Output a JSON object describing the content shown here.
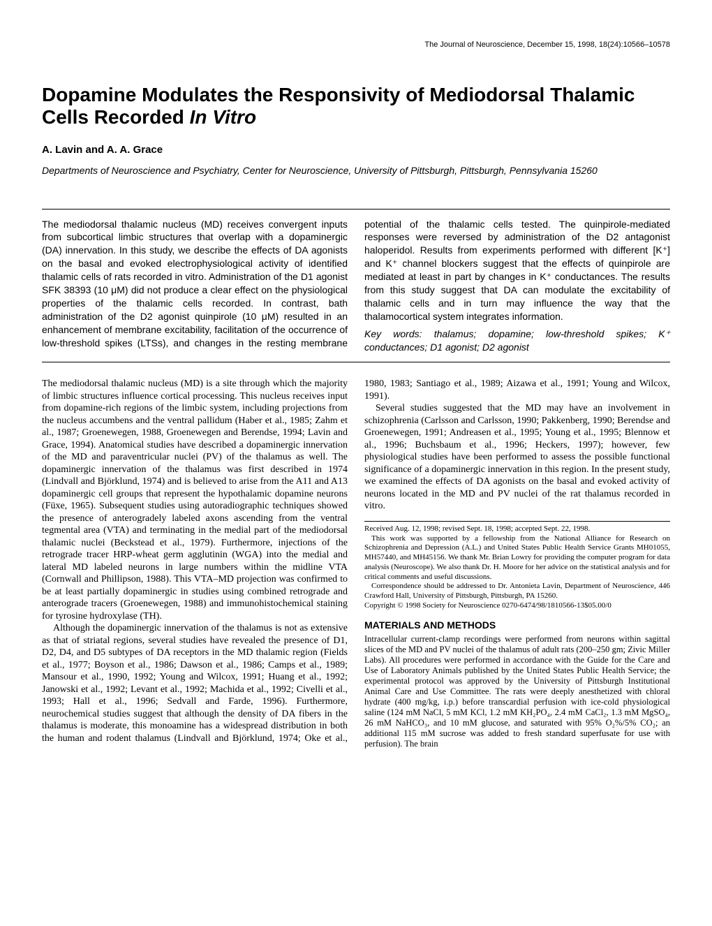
{
  "journal_header": "The Journal of Neuroscience, December 15, 1998, 18(24):10566–10578",
  "title_a": "Dopamine Modulates the Responsivity of Mediodorsal Thalamic Cells Recorded ",
  "title_b": "In Vitro",
  "authors": "A. Lavin and A. A. Grace",
  "affiliation": "Departments of Neuroscience and Psychiatry, Center for Neuroscience, University of Pittsburgh, Pittsburgh, Pennsylvania 15260",
  "abstract_p1": "The mediodorsal thalamic nucleus (MD) receives convergent inputs from subcortical limbic structures that overlap with a dopaminergic (DA) innervation. In this study, we describe the effects of DA agonists on the basal and evoked electrophysiological activity of identified thalamic cells of rats recorded in vitro. Administration of the D1 agonist SFK 38393 (10 μM) did not produce a clear effect on the physiological properties of the thalamic cells recorded. In contrast, bath administration of the D2 agonist quinpirole (10 μM) resulted in an enhancement of membrane excitability, facilitation of the occurrence of low-threshold spikes (LTSs), and changes in the resting membrane potential of the thalamic cells tested. The quinpirole-mediated responses were reversed by administration of the D2 antagonist haloperidol. Results from experiments performed with different [K⁺] and K⁺ channel blockers suggest that the effects of quinpirole are mediated at least in part by changes in K⁺ conductances. The results from this study suggest that DA can modulate the excitability of thalamic cells and in turn may influence the way that the thalamocortical system integrates information.",
  "keywords": "Key words: thalamus; dopamine; low-threshold spikes; K⁺ conductances; D1 agonist; D2 agonist",
  "body_p1": "The mediodorsal thalamic nucleus (MD) is a site through which the majority of limbic structures influence cortical processing. This nucleus receives input from dopamine-rich regions of the limbic system, including projections from the nucleus accumbens and the ventral pallidum (Haber et al., 1985; Zahm et al., 1987; Groenewegen, 1988, Groenewegen and Berendse, 1994; Lavin and Grace, 1994). Anatomical studies have described a dopaminergic innervation of the MD and paraventricular nuclei (PV) of the thalamus as well. The dopaminergic innervation of the thalamus was first described in 1974 (Lindvall and Björklund, 1974) and is believed to arise from the A11 and A13 dopaminergic cell groups that represent the hypothalamic dopamine neurons (Füxe, 1965). Subsequent studies using autoradiographic techniques showed the presence of anterogradely labeled axons ascending from the ventral tegmental area (VTA) and terminating in the medial part of the mediodorsal thalamic nuclei (Beckstead et al., 1979). Furthermore, injections of the retrograde tracer HRP-wheat germ agglutinin (WGA) into the medial and lateral MD labeled neurons in large numbers within the midline VTA (Cornwall and Phillipson, 1988). This VTA–MD projection was confirmed to be at least partially dopaminergic in studies using combined retrograde and anterograde tracers (Groenewegen, 1988) and immunohistochemical staining for tyrosine hydroxylase (TH).",
  "body_p2": "Although the dopaminergic innervation of the thalamus is not as extensive as that of striatal regions, several studies have revealed the presence of D1, D2, D4, and D5 subtypes of DA receptors in the MD thalamic region (Fields et al., 1977; Boyson et al., 1986; Dawson et al., 1986; Camps et al., 1989; Mansour et al., 1990, 1992; Young and Wilcox, 1991; Huang et al., 1992; Janowski et al., 1992; Levant et al., 1992; Machida et al., 1992; Civelli et al., 1993; Hall et al., 1996; Sedvall and Farde, 1996). Furthermore, neurochemical studies suggest that although the density of DA fibers in the thalamus is moderate, this monoamine has a widespread distribution in both the human and rodent thalamus (Lindvall and Björklund, 1974; Oke et al., 1980, 1983; Santiago et al., 1989; Aizawa et al., 1991; Young and Wilcox, 1991).",
  "body_p3": "Several studies suggested that the MD may have an involvement in schizophrenia (Carlsson and Carlsson, 1990; Pakkenberg, 1990; Berendse and Groenewegen, 1991; Andreasen et al., 1995; Young et al., 1995; Blennow et al., 1996; Buchsbaum et al., 1996; Heckers, 1997); however, few physiological studies have been performed to assess the possible functional significance of a dopaminergic innervation in this region. In the present study, we examined the effects of DA agonists on the basal and evoked activity of neurons located in the MD and PV nuclei of the rat thalamus recorded in vitro.",
  "methods_head": "MATERIALS AND METHODS",
  "methods_p1": "Intracellular current-clamp recordings were performed from neurons within sagittal slices of the MD and PV nuclei of the thalamus of adult rats (200–250 gm; Zivic Miller Labs). All procedures were performed in accordance with the Guide for the Care and Use of Laboratory Animals published by the United States Public Health Service; the experimental protocol was approved by the University of Pittsburgh Institutional Animal Care and Use Committee. The rats were deeply anesthetized with chloral hydrate (400 mg/kg, i.p.) before transcardial perfusion with ice-cold physiological saline (124 mM NaCl, 5 mM KCl, 1.2 mM KH₂PO₄, 2.4 mM CaCl₂, 1.3 mM MgSO₄, 26 mM NaHCO₃, and 10 mM glucose, and saturated with 95% O₂%/5% CO₂; an additional 115 mM sucrose was added to fresh standard superfusate for use with perfusion). The brain",
  "footnote_received": "Received Aug. 12, 1998; revised Sept. 18, 1998; accepted Sept. 22, 1998.",
  "footnote_support": "This work was supported by a fellowship from the National Alliance for Research on Schizophrenia and Depression (A.L.) and United States Public Health Service Grants MH01055, MH57440, and MH45156. We thank Mr. Brian Lowry for providing the computer program for data analysis (Neuroscope). We also thank Dr. H. Moore for her advice on the statistical analysis and for critical comments and useful discussions.",
  "footnote_corr": "Correspondence should be addressed to Dr. Antonieta Lavin, Department of Neuroscience, 446 Crawford Hall, University of Pittsburgh, Pittsburgh, PA 15260.",
  "footnote_copyright": "Copyright © 1998 Society for Neuroscience   0270-6474/98/1810566-13$05.00/0"
}
